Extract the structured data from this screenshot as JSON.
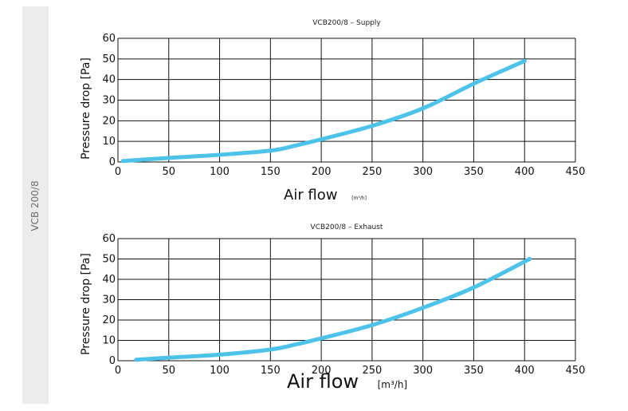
{
  "side_tab": {
    "label": "VCB 200/8"
  },
  "colors": {
    "curve": "#4dc3ea",
    "grid": "#111111",
    "side_tab_bg": "#ececec"
  },
  "chart_data": [
    {
      "type": "line",
      "title": "VCB200/8 – Supply",
      "xlabel": "Air flow",
      "xunit": "[m³/h]",
      "ylabel": "Pressure drop [Pa]",
      "xlim": [
        0,
        450
      ],
      "ylim": [
        0,
        60
      ],
      "xticks": [
        "0",
        "50",
        "100",
        "150",
        "200",
        "250",
        "300",
        "350",
        "400",
        "450"
      ],
      "yticks": [
        "0",
        "10",
        "20",
        "30",
        "40",
        "50",
        "60"
      ],
      "grid": true,
      "series": [
        {
          "x": [
            5,
            50,
            100,
            150,
            175,
            200,
            250,
            300,
            350,
            400
          ],
          "y": [
            0.5,
            2,
            3.5,
            5.5,
            8,
            11,
            17.5,
            26,
            38,
            49
          ]
        }
      ]
    },
    {
      "type": "line",
      "title": "VCB200/8 – Exhaust",
      "xlabel": "Air flow",
      "xunit": "[m³/h]",
      "ylabel": "Pressure drop [Pa]",
      "xlim": [
        0,
        450
      ],
      "ylim": [
        0,
        60
      ],
      "xticks": [
        "0",
        "50",
        "100",
        "150",
        "200",
        "250",
        "300",
        "350",
        "400",
        "450"
      ],
      "yticks": [
        "0",
        "10",
        "20",
        "30",
        "40",
        "50",
        "60"
      ],
      "grid": true,
      "series": [
        {
          "x": [
            18,
            50,
            100,
            150,
            175,
            200,
            250,
            300,
            350,
            405
          ],
          "y": [
            0.5,
            1.5,
            3,
            5.5,
            8,
            11,
            17.5,
            26,
            36,
            50
          ]
        }
      ]
    }
  ]
}
